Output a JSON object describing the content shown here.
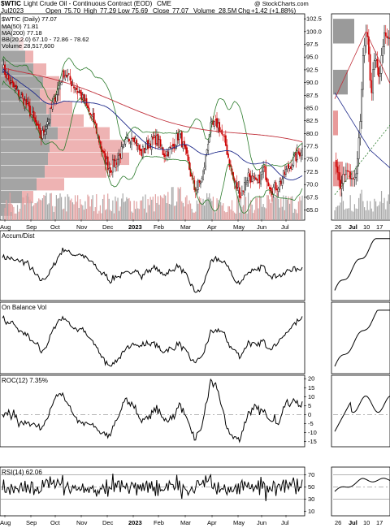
{
  "header": {
    "symbol": "$WTIC",
    "description": "Light Crude Oil - Continuous Contract (EOD)",
    "exchange": "CME",
    "watermark": "@ StockCharts.com",
    "date": "Jul2023",
    "open_label": "Open",
    "open": "75.70",
    "high_label": "High",
    "high": "77.29",
    "low_label": "Low",
    "low": "75.69",
    "close_label": "Close",
    "close": "77.07",
    "volume_label": "Volume",
    "volume": "28.5M",
    "chg_label": "Chg",
    "chg": "+1.42 (+1.88%)"
  },
  "legend": {
    "price": "$WTIC (Daily) 77.07",
    "ma50": "MA(50) 71.81",
    "ma200": "MA(200) 77.18",
    "bb": "BB(20,2.0) 67.10 - 72.86 - 78.62",
    "volume": "Volume 28,517,600"
  },
  "panels": {
    "accum": "Accum/Dist",
    "obv": "On Balance Vol",
    "roc": "ROC(12) 7.35%",
    "rsi": "RSI(14) 62.06"
  },
  "colors": {
    "up": "#000000",
    "down": "#cc0000",
    "ma50": "#1f2a8a",
    "ma200": "#c0303a",
    "bb": "#2a7a2a",
    "volume_up": "#a8a8a8",
    "volume_down": "#e0a0a0",
    "profile_gray": "#9a9a9a",
    "profile_red": "#e89a9a",
    "ref_line": "#888888"
  },
  "chart_data": [
    {
      "type": "candlestick",
      "title": "$WTIC Light Crude Oil - Continuous Contract (EOD)",
      "x_labels": [
        "Aug",
        "Sep",
        "Oct",
        "Nov",
        "Dec",
        "2023",
        "Feb",
        "Mar",
        "Apr",
        "May",
        "Jun",
        "Jul"
      ],
      "y_ticks": [
        "102.5",
        "100.0",
        "97.5",
        "95.0",
        "92.5",
        "90.0",
        "87.5",
        "85.0",
        "82.5",
        "80.0",
        "77.5",
        "75.0",
        "72.5",
        "70.0",
        "67.5",
        "65.0"
      ],
      "ylim": [
        63.5,
        103
      ],
      "close_path": [
        [
          "Aug",
          93
        ],
        [
          "Aug",
          90
        ],
        [
          "Sep",
          88
        ],
        [
          "Sep",
          86
        ],
        [
          "Sep",
          83
        ],
        [
          "Sep",
          79
        ],
        [
          "Oct",
          83
        ],
        [
          "Oct",
          88
        ],
        [
          "Oct",
          92
        ],
        [
          "Nov",
          90
        ],
        [
          "Nov",
          88
        ],
        [
          "Nov",
          85
        ],
        [
          "Nov",
          82
        ],
        [
          "Dec",
          76
        ],
        [
          "Dec",
          73
        ],
        [
          "Dec",
          75
        ],
        [
          "Dec",
          78
        ],
        [
          "2023",
          80
        ],
        [
          "2023",
          76
        ],
        [
          "2023",
          78
        ],
        [
          "Feb",
          79
        ],
        [
          "Feb",
          76
        ],
        [
          "Feb",
          77
        ],
        [
          "Mar",
          80
        ],
        [
          "Mar",
          75
        ],
        [
          "Mar",
          69
        ],
        [
          "Mar",
          71
        ],
        [
          "Apr",
          81
        ],
        [
          "Apr",
          82
        ],
        [
          "Apr",
          78
        ],
        [
          "May",
          71
        ],
        [
          "May",
          68
        ],
        [
          "May",
          72
        ],
        [
          "May",
          70
        ],
        [
          "Jun",
          73
        ],
        [
          "Jun",
          69
        ],
        [
          "Jun",
          70
        ],
        [
          "Jul",
          73
        ],
        [
          "Jul",
          75
        ],
        [
          "Jul",
          77.07
        ]
      ],
      "ma50_end": 71.81,
      "ma200_end": 77.18,
      "bb_end": [
        67.1,
        72.86,
        78.62
      ],
      "volume_last": 28517600
    },
    {
      "type": "line",
      "title": "Accum/Dist"
    },
    {
      "type": "line",
      "title": "On Balance Vol"
    },
    {
      "type": "line",
      "title": "ROC(12) 7.35%",
      "y_ticks": [
        "20",
        "15",
        "10",
        "5",
        "0",
        "-5",
        "-10",
        "-15"
      ],
      "ylim": [
        -17,
        21
      ],
      "last": 7.35
    },
    {
      "type": "line",
      "title": "RSI(14) 62.06",
      "y_ticks": [
        "70",
        "50",
        "30",
        "10"
      ],
      "ylim": [
        5,
        80
      ],
      "last": 62.06
    }
  ],
  "inset": {
    "x_labels": [
      "26",
      "Jul",
      "10",
      "17"
    ],
    "x_labels_bottom": [
      "26",
      "Jul",
      "10",
      "17"
    ]
  }
}
